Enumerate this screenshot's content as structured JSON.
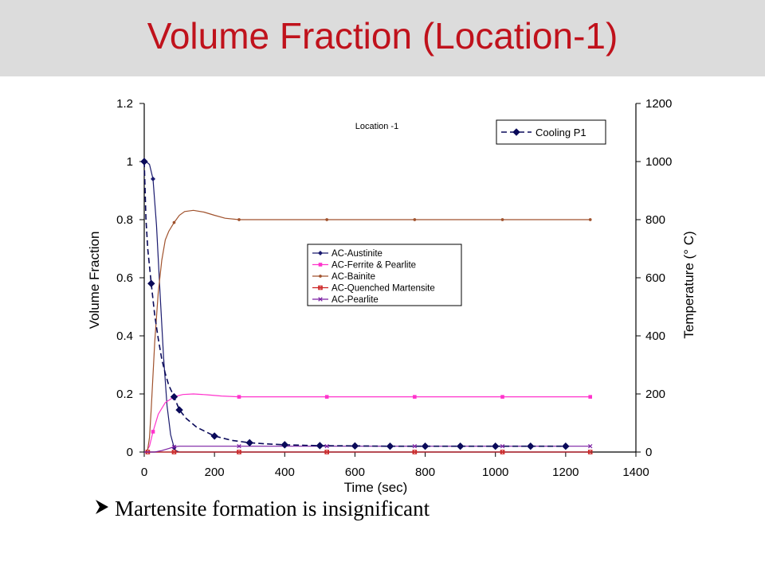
{
  "header": {
    "title": "Volume Fraction (Location-1)"
  },
  "colors": {
    "title": "#c0121c",
    "header_bg": "#dcdcdc",
    "austenite": "#1a1a6e",
    "ferrite_pearlite": "#ff33cc",
    "bainite": "#a0522d",
    "quenched_martensite": "#cc2222",
    "pearlite": "#7a1fa2",
    "cooling": "#0a0a5a"
  },
  "bullet": {
    "text": "Martensite formation is insignificant",
    "icon": "arrow-right-icon"
  },
  "chart_data": {
    "type": "line",
    "title": "Location -1",
    "xlabel": "Time (sec)",
    "ylabel": "Volume Fraction",
    "y2label": "Temperature (° C)",
    "xlim": [
      0,
      1400
    ],
    "ylim": [
      0,
      1.2
    ],
    "y2lim": [
      0,
      1200
    ],
    "xticks": [
      "0",
      "200",
      "400",
      "600",
      "800",
      "1000",
      "1200",
      "1400"
    ],
    "yticks": [
      "0",
      "0.2",
      "0.4",
      "0.6",
      "0.8",
      "1",
      "1.2"
    ],
    "y2ticks": [
      "0",
      "200",
      "400",
      "600",
      "800",
      "1000",
      "1200"
    ],
    "legend_placement": "center",
    "legend2_placement": "top-right",
    "series": [
      {
        "name": "AC-Austinite",
        "axis": "left",
        "marker": "diamond",
        "x": [
          0,
          5,
          15,
          25,
          35,
          45,
          55,
          65,
          75,
          85,
          90,
          100,
          1270
        ],
        "y": [
          1.0,
          1.0,
          0.99,
          0.94,
          0.78,
          0.55,
          0.33,
          0.16,
          0.06,
          0.015,
          0.005,
          0.0,
          0.0
        ],
        "marker_x": [
          0,
          25,
          85
        ]
      },
      {
        "name": "AC-Ferrite & Pearlite",
        "axis": "left",
        "marker": "square",
        "x": [
          0,
          5,
          15,
          25,
          40,
          60,
          85,
          110,
          140,
          180,
          220,
          270,
          520,
          770,
          1020,
          1270
        ],
        "y": [
          0,
          0.0,
          0.02,
          0.07,
          0.13,
          0.17,
          0.19,
          0.198,
          0.2,
          0.197,
          0.193,
          0.19,
          0.19,
          0.19,
          0.19,
          0.19
        ],
        "marker_x": [
          25,
          85,
          270,
          520,
          770,
          1020,
          1270
        ]
      },
      {
        "name": "AC-Bainite",
        "axis": "left",
        "marker": "circle",
        "x": [
          0,
          5,
          10,
          15,
          20,
          30,
          40,
          50,
          60,
          70,
          85,
          100,
          115,
          140,
          170,
          200,
          230,
          270,
          520,
          770,
          1020,
          1270
        ],
        "y": [
          0,
          0,
          0.01,
          0.05,
          0.15,
          0.38,
          0.55,
          0.66,
          0.73,
          0.76,
          0.79,
          0.815,
          0.828,
          0.832,
          0.826,
          0.815,
          0.805,
          0.8,
          0.8,
          0.8,
          0.8,
          0.8
        ],
        "marker_x": [
          85,
          270,
          520,
          770,
          1020,
          1270
        ]
      },
      {
        "name": "AC-Quenched Martensite",
        "axis": "left",
        "marker": "square-x",
        "x": [
          0,
          1270
        ],
        "y": [
          0.0,
          0.0
        ],
        "marker_x": [
          10,
          85,
          270,
          520,
          770,
          1020,
          1270
        ]
      },
      {
        "name": "AC-Pearlite",
        "axis": "left",
        "marker": "x",
        "x": [
          0,
          30,
          50,
          70,
          85,
          100,
          150,
          270,
          1270
        ],
        "y": [
          0,
          0.0,
          0.005,
          0.012,
          0.018,
          0.02,
          0.02,
          0.02,
          0.02
        ],
        "marker_x": [
          85,
          270,
          520,
          770,
          1020,
          1270
        ]
      },
      {
        "name": "Cooling P1",
        "axis": "right",
        "marker": "diamond",
        "dash": true,
        "x": [
          0,
          5,
          10,
          20,
          30,
          40,
          50,
          60,
          70,
          85,
          100,
          120,
          150,
          200,
          250,
          300,
          350,
          400,
          500,
          600,
          700,
          800,
          900,
          1000,
          1100,
          1200
        ],
        "y": [
          1000,
          800,
          700,
          580,
          470,
          390,
          320,
          270,
          230,
          190,
          145,
          115,
          85,
          55,
          40,
          32,
          28,
          25,
          22,
          21,
          20,
          20,
          20,
          20,
          20,
          20
        ],
        "marker_x": [
          0,
          20,
          85,
          100,
          200,
          300,
          400,
          500,
          600,
          700,
          800,
          900,
          1000,
          1100,
          1200
        ]
      }
    ]
  }
}
